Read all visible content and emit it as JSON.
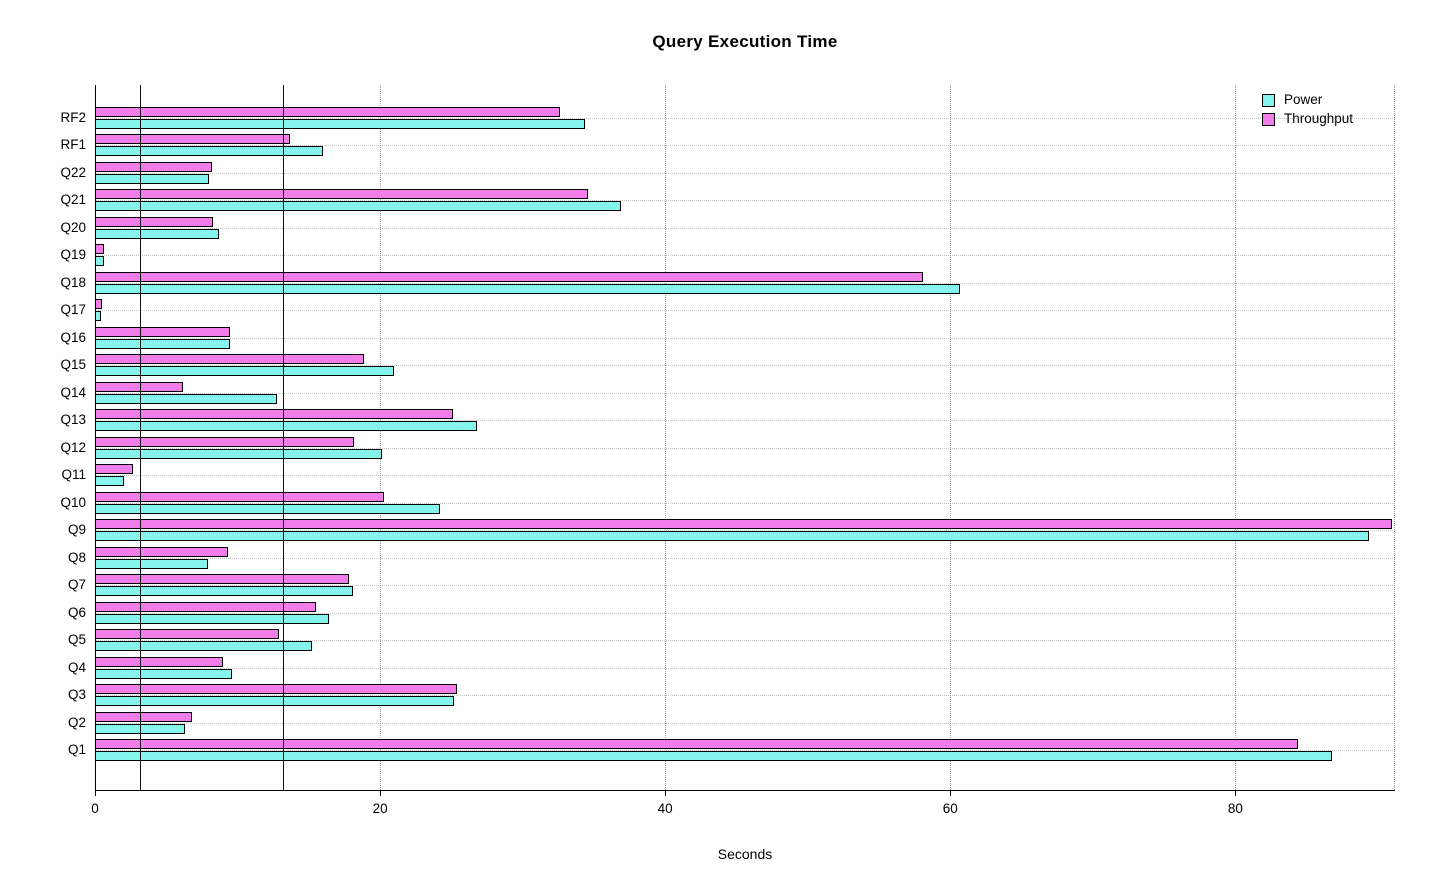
{
  "chart_data": {
    "type": "bar",
    "orientation": "horizontal",
    "title": "Query Execution Time",
    "xlabel": "Seconds",
    "ylabel": "",
    "xlim": [
      0,
      91.2
    ],
    "xticks": [
      0,
      20,
      40,
      60,
      80
    ],
    "grid": true,
    "legend_position": "top-right",
    "categories": [
      "Q1",
      "Q2",
      "Q3",
      "Q4",
      "Q5",
      "Q6",
      "Q7",
      "Q8",
      "Q9",
      "Q10",
      "Q11",
      "Q12",
      "Q13",
      "Q14",
      "Q15",
      "Q16",
      "Q17",
      "Q18",
      "Q19",
      "Q20",
      "Q21",
      "Q22",
      "RF1",
      "RF2"
    ],
    "series": [
      {
        "name": "Power",
        "color": "#84f4ec",
        "values": [
          86.8,
          6.3,
          25.2,
          9.6,
          15.2,
          16.4,
          18.1,
          7.9,
          89.4,
          24.2,
          2.0,
          20.1,
          26.8,
          12.8,
          21.0,
          9.5,
          0.4,
          60.7,
          0.65,
          8.7,
          36.9,
          8.0,
          16.0,
          34.4
        ]
      },
      {
        "name": "Throughput",
        "color": "#f07de9",
        "values": [
          84.4,
          6.8,
          25.4,
          9.0,
          12.9,
          15.5,
          17.8,
          9.3,
          91.0,
          20.3,
          2.7,
          18.2,
          25.1,
          6.2,
          18.9,
          9.5,
          0.5,
          58.1,
          0.65,
          8.3,
          34.6,
          8.2,
          13.7,
          32.6
        ]
      }
    ],
    "reference_lines_x": [
      3.15,
      13.2
    ],
    "legend_entries": [
      "Power",
      "Throughput"
    ]
  }
}
